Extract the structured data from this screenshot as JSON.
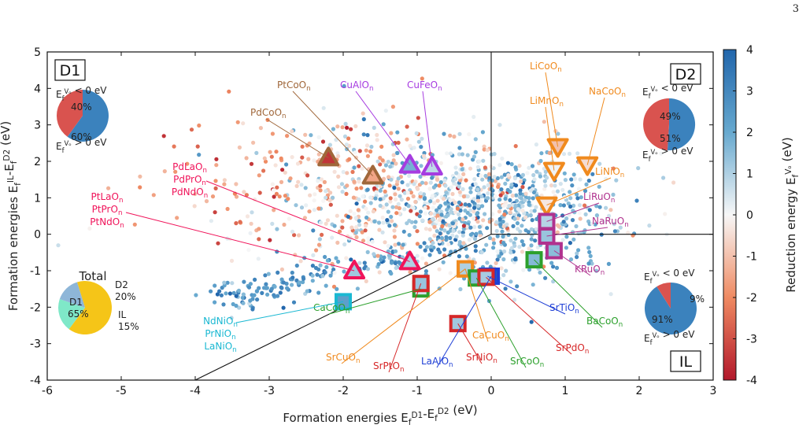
{
  "page_number": "3",
  "chart_data": {
    "type": "scatter",
    "xlabel": "Formation energies E_f^D1-E_f^D2 (eV)",
    "ylabel": "Formation energies E_f^IL-E_f^D2 (eV)",
    "xlim": [
      -6,
      3
    ],
    "ylim": [
      -4,
      5
    ],
    "xticks": [
      "-6",
      "-5",
      "-4",
      "-3",
      "-2",
      "-1",
      "0",
      "1",
      "2",
      "3"
    ],
    "yticks": [
      "-4",
      "-3",
      "-2",
      "-1",
      "0",
      "1",
      "2",
      "3",
      "4",
      "5"
    ],
    "colorbar": {
      "label": "Reduction energy E_f^Vo (eV)",
      "range": [
        -4,
        4
      ],
      "ticks": [
        "-4",
        "-3",
        "-2",
        "-1",
        "0",
        "1",
        "2",
        "3",
        "4"
      ],
      "colormap": "RdBu",
      "low_color": "#b2182b",
      "mid_color": "#f7f7f7",
      "high_color": "#2166ac"
    },
    "regions": [
      {
        "name": "D1",
        "pie": {
          "neg_label": "E_f^Vo < 0 eV",
          "pos_label": "E_f^Vo > 0 eV",
          "neg": 40,
          "pos": 60,
          "neg_text": "40%",
          "pos_text": "60%"
        }
      },
      {
        "name": "D2",
        "pie": {
          "neg_label": "E_f^Vo < 0 eV",
          "pos_label": "E_f^Vo > 0 eV",
          "neg": 49,
          "pos": 51,
          "neg_text": "49%",
          "pos_text": "51%"
        }
      },
      {
        "name": "IL",
        "pie": {
          "neg_label": "E_f^Vo < 0 eV",
          "pos_label": "E_f^Vo > 0 eV",
          "neg": 9,
          "pos": 91,
          "neg_text": "9%",
          "pos_text": "91%"
        }
      }
    ],
    "total_pie": {
      "title": "Total",
      "slices": [
        {
          "name": "D1",
          "value": 65,
          "text": "65%",
          "color": "#f5c518"
        },
        {
          "name": "D2",
          "value": 20,
          "text": "20%",
          "color": "#7fe8c8"
        },
        {
          "name": "IL",
          "value": 15,
          "text": "15%",
          "color": "#8eb6d8"
        }
      ]
    },
    "highlighted": [
      {
        "label": "PdCoO_n",
        "shape": "triangle-up",
        "color": "#a0673a",
        "x": -2.2,
        "y": 2.1,
        "vo": -3.5
      },
      {
        "label": "PtCoO_n",
        "shape": "triangle-up",
        "color": "#a0673a",
        "x": -1.6,
        "y": 1.6,
        "vo": -1.5
      },
      {
        "label": "CuAlO_n",
        "shape": "triangle-up",
        "color": "#a63ce0",
        "x": -1.1,
        "y": 1.9,
        "vo": 1.8
      },
      {
        "label": "CuFeO_n",
        "shape": "triangle-up",
        "color": "#a63ce0",
        "x": -0.8,
        "y": 1.85,
        "vo": 0.8
      },
      {
        "label": "PdLaO_n, PdPrO_n, PdNdO_n",
        "shape": "triangle-up",
        "color": "#f0145a",
        "x": -1.1,
        "y": -0.75,
        "vo": 1.0
      },
      {
        "label": "PtLaO_n, PtPrO_n, PtNdO_n",
        "shape": "triangle-up",
        "color": "#f0145a",
        "x": -1.85,
        "y": -1.0,
        "vo": 1.2
      },
      {
        "label": "LiCoO_n",
        "shape": "triangle-down",
        "color": "#f08a1e",
        "x": 0.9,
        "y": 2.4,
        "vo": -1.0
      },
      {
        "label": "LiMnO_n",
        "shape": "triangle-down",
        "color": "#f08a1e",
        "x": 0.85,
        "y": 1.75,
        "vo": 0.1
      },
      {
        "label": "NaCoO_n",
        "shape": "triangle-down",
        "color": "#f08a1e",
        "x": 1.3,
        "y": 1.9,
        "vo": -0.5
      },
      {
        "label": "LiNiO_n",
        "shape": "triangle-down",
        "color": "#f08a1e",
        "x": 0.75,
        "y": 0.8,
        "vo": -0.3
      },
      {
        "label": "LiRuO_n",
        "shape": "square",
        "color": "#b0328e",
        "x": 0.75,
        "y": 0.35,
        "vo": 0.9
      },
      {
        "label": "NaRuO_n",
        "shape": "square",
        "color": "#b0328e",
        "x": 0.75,
        "y": -0.05,
        "vo": 1.3
      },
      {
        "label": "KRuO_n",
        "shape": "square",
        "color": "#b0328e",
        "x": 0.85,
        "y": -0.45,
        "vo": 1.5
      },
      {
        "label": "NdNiO_n, PrNiO_n, LaNiO_n",
        "shape": "square",
        "color": "#1ab8d2",
        "x": -2.0,
        "y": -1.85,
        "vo": 2.3
      },
      {
        "label": "CaCoO_n",
        "shape": "square",
        "color": "#2ca02c",
        "x": -0.95,
        "y": -1.5,
        "vo": 0.5
      },
      {
        "label": "SrPtO_n",
        "shape": "square",
        "color": "#d62728",
        "x": -0.95,
        "y": -1.35,
        "vo": 1.3
      },
      {
        "label": "SrCuO_n",
        "shape": "square",
        "color": "#f08a1e",
        "x": -0.35,
        "y": -0.95,
        "vo": 1.4
      },
      {
        "label": "LaAlO_n",
        "shape": "square",
        "color": "#1f3fd6",
        "x": 0.0,
        "y": -1.15,
        "vo": 3.8
      },
      {
        "label": "SrTiO_n",
        "shape": "square",
        "color": "#1f3fd6",
        "x": -0.05,
        "y": -1.15,
        "vo": 3.5
      },
      {
        "label": "SrNiO_n",
        "shape": "square",
        "color": "#d62728",
        "x": -0.45,
        "y": -2.45,
        "vo": 1.2
      },
      {
        "label": "CaCuO_n",
        "shape": "square",
        "color": "#f08a1e",
        "x": -0.35,
        "y": -0.95,
        "vo": 1.0
      },
      {
        "label": "SrCoO_n",
        "shape": "square",
        "color": "#2ca02c",
        "x": -0.2,
        "y": -1.2,
        "vo": 1.5
      },
      {
        "label": "SrPdO_n",
        "shape": "square",
        "color": "#d62728",
        "x": -0.07,
        "y": -1.18,
        "vo": 1.1
      },
      {
        "label": "BaCoO_n",
        "shape": "square",
        "color": "#2ca02c",
        "x": 0.58,
        "y": -0.7,
        "vo": 1.6
      }
    ],
    "boundaries": [
      {
        "from": [
          -4,
          -4
        ],
        "to": [
          0,
          0
        ]
      },
      {
        "from": [
          0,
          0
        ],
        "to": [
          0,
          5
        ]
      },
      {
        "from": [
          0,
          0
        ],
        "to": [
          3,
          0
        ]
      }
    ]
  }
}
